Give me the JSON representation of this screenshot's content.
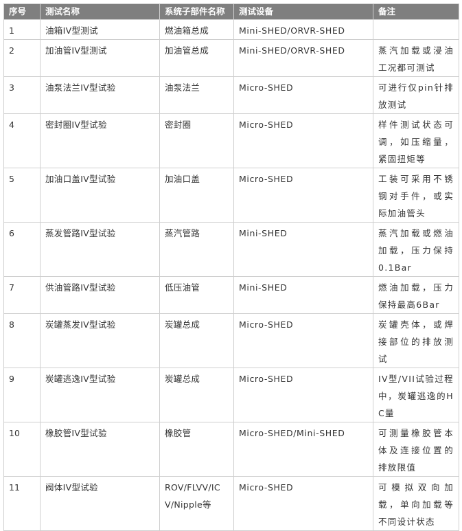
{
  "table": {
    "header": [
      "序号",
      "测试名称",
      "系统子部件名称",
      "测试设备",
      "备注"
    ],
    "rows": [
      [
        "1",
        "油箱IV型测试",
        "燃油箱总成",
        "Mini-SHED/ORVR-SHED",
        null
      ],
      [
        "2",
        "加油管IV型测试",
        "加油管总成",
        "Mini-SHED/ORVR-SHED",
        "蒸汽加载或浸油工况都可测试"
      ],
      [
        "3",
        "油泵法兰IV型试验",
        "油泵法兰",
        "Micro-SHED",
        "可进行仅pin针排放测试"
      ],
      [
        "4",
        "密封圈IV型试验",
        "密封圈",
        "Micro-SHED",
        "样件测试状态可调，如压缩量，紧固扭矩等"
      ],
      [
        "5",
        "加油口盖IV型试验",
        "加油口盖",
        "Micro-SHED",
        "工装可采用不锈钢对手件，或实际加油管头"
      ],
      [
        "6",
        "蒸发管路IV型试验",
        "蒸汽管路",
        "Mini-SHED",
        "蒸汽加载或燃油加载，压力保持0.1Bar"
      ],
      [
        "7",
        "供油管路IV型试验",
        "低压油管",
        "Mini-SHED",
        "燃油加载，压力保持最高6Bar"
      ],
      [
        "8",
        "炭罐蒸发IV型试验",
        "炭罐总成",
        "Micro-SHED",
        "炭罐壳体，或焊接部位的排放测试"
      ],
      [
        "9",
        "炭罐逃逸IV型试验",
        "炭罐总成",
        "Micro-SHED",
        "IV型/VII试验过程中，炭罐逃逸的HC量"
      ],
      [
        "10",
        "橡胶管IV型试验",
        "橡胶管",
        "Micro-SHED/Mini-SHED",
        "可测量橡胶管本体及连接位置的排放限值"
      ],
      [
        "11",
        "阀体IV型试验",
        "ROV/FLVV/ICV/Nipple等",
        "Micro-SHED",
        "可模拟双向加载，单向加载等不同设计状态"
      ]
    ]
  }
}
